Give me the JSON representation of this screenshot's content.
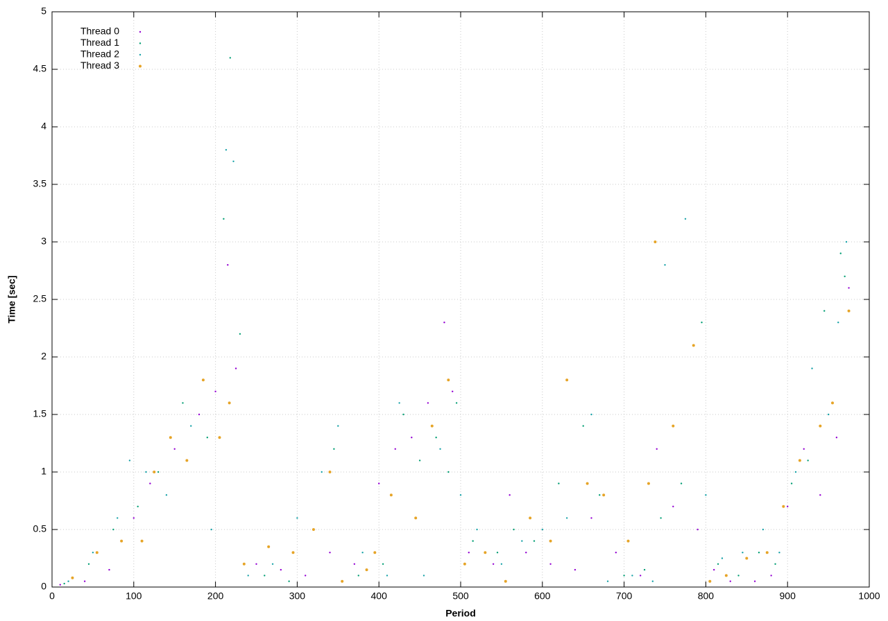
{
  "chart_data": {
    "type": "scatter",
    "xlabel": "Period",
    "ylabel": "Time [sec]",
    "xlim": [
      0,
      1000
    ],
    "ylim": [
      0,
      5
    ],
    "xticks": [
      0,
      100,
      200,
      300,
      400,
      500,
      600,
      700,
      800,
      900,
      1000
    ],
    "yticks": [
      0,
      0.5,
      1,
      1.5,
      2,
      2.5,
      3,
      3.5,
      4,
      4.5,
      5
    ],
    "grid": true,
    "legend": "top-left",
    "series": [
      {
        "name": "Thread 0",
        "color": "#9400d3",
        "x": [
          10,
          40,
          70,
          100,
          120,
          150,
          180,
          200,
          215,
          225,
          250,
          280,
          310,
          340,
          370,
          400,
          420,
          440,
          460,
          480,
          490,
          510,
          540,
          560,
          580,
          610,
          640,
          660,
          690,
          720,
          740,
          760,
          790,
          810,
          830,
          860,
          880,
          900,
          920,
          940,
          960,
          975
        ],
        "values": [
          0.02,
          0.05,
          0.15,
          0.6,
          0.9,
          1.2,
          1.5,
          1.7,
          2.8,
          1.9,
          0.2,
          0.15,
          0.1,
          0.3,
          0.2,
          0.9,
          1.2,
          1.3,
          1.6,
          2.3,
          1.7,
          0.3,
          0.2,
          0.8,
          0.3,
          0.2,
          0.15,
          0.6,
          0.3,
          0.1,
          1.2,
          0.7,
          0.5,
          0.15,
          0.05,
          0.05,
          0.1,
          0.7,
          1.2,
          0.8,
          1.3,
          2.6
        ]
      },
      {
        "name": "Thread 1",
        "color": "#009e73",
        "x": [
          15,
          45,
          75,
          105,
          130,
          160,
          190,
          210,
          218,
          230,
          260,
          290,
          320,
          345,
          375,
          405,
          430,
          450,
          470,
          485,
          495,
          515,
          545,
          565,
          590,
          620,
          650,
          670,
          700,
          725,
          745,
          770,
          795,
          815,
          840,
          865,
          885,
          905,
          925,
          945,
          965,
          970
        ],
        "values": [
          0.03,
          0.2,
          0.5,
          0.7,
          1.0,
          1.6,
          1.3,
          3.2,
          4.6,
          2.2,
          0.1,
          0.05,
          0.5,
          1.2,
          0.1,
          0.2,
          1.5,
          1.1,
          1.3,
          1.0,
          1.6,
          0.4,
          0.3,
          0.5,
          0.4,
          0.9,
          1.4,
          0.8,
          0.1,
          0.15,
          0.6,
          0.9,
          2.3,
          0.2,
          0.1,
          0.3,
          0.2,
          0.9,
          1.1,
          2.4,
          2.9,
          2.7
        ]
      },
      {
        "name": "Thread 2",
        "color": "#17a2a8",
        "x": [
          20,
          50,
          80,
          95,
          115,
          140,
          170,
          195,
          213,
          222,
          240,
          270,
          300,
          330,
          350,
          380,
          410,
          425,
          455,
          475,
          500,
          520,
          550,
          575,
          600,
          630,
          660,
          680,
          710,
          735,
          750,
          775,
          800,
          820,
          845,
          870,
          890,
          910,
          930,
          950,
          962,
          972
        ],
        "values": [
          0.05,
          0.3,
          0.6,
          1.1,
          1.0,
          0.8,
          1.4,
          0.5,
          3.8,
          3.7,
          0.1,
          0.2,
          0.6,
          1.0,
          1.4,
          0.3,
          0.1,
          1.6,
          0.1,
          1.2,
          0.8,
          0.5,
          0.2,
          0.4,
          0.5,
          0.6,
          1.5,
          0.05,
          0.1,
          0.05,
          2.8,
          3.2,
          0.8,
          0.25,
          0.3,
          0.5,
          0.3,
          1.0,
          1.9,
          1.5,
          2.3,
          3.0
        ]
      },
      {
        "name": "Thread 3",
        "color": "#e6a427",
        "x": [
          25,
          55,
          85,
          110,
          125,
          145,
          165,
          185,
          205,
          217,
          235,
          265,
          295,
          320,
          340,
          355,
          385,
          395,
          415,
          445,
          465,
          485,
          505,
          530,
          555,
          585,
          610,
          630,
          655,
          675,
          705,
          730,
          738,
          760,
          785,
          805,
          825,
          850,
          875,
          895,
          915,
          940,
          955,
          975
        ],
        "values": [
          0.08,
          0.3,
          0.4,
          0.4,
          1.0,
          1.3,
          1.1,
          1.8,
          1.3,
          1.6,
          0.2,
          0.35,
          0.3,
          0.5,
          1.0,
          0.05,
          0.15,
          0.3,
          0.8,
          0.6,
          1.4,
          1.8,
          0.2,
          0.3,
          0.05,
          0.6,
          0.4,
          1.8,
          0.9,
          0.8,
          0.4,
          0.9,
          3.0,
          1.4,
          2.1,
          0.05,
          0.1,
          0.25,
          0.3,
          0.7,
          1.1,
          1.4,
          1.6,
          2.4
        ]
      }
    ]
  }
}
